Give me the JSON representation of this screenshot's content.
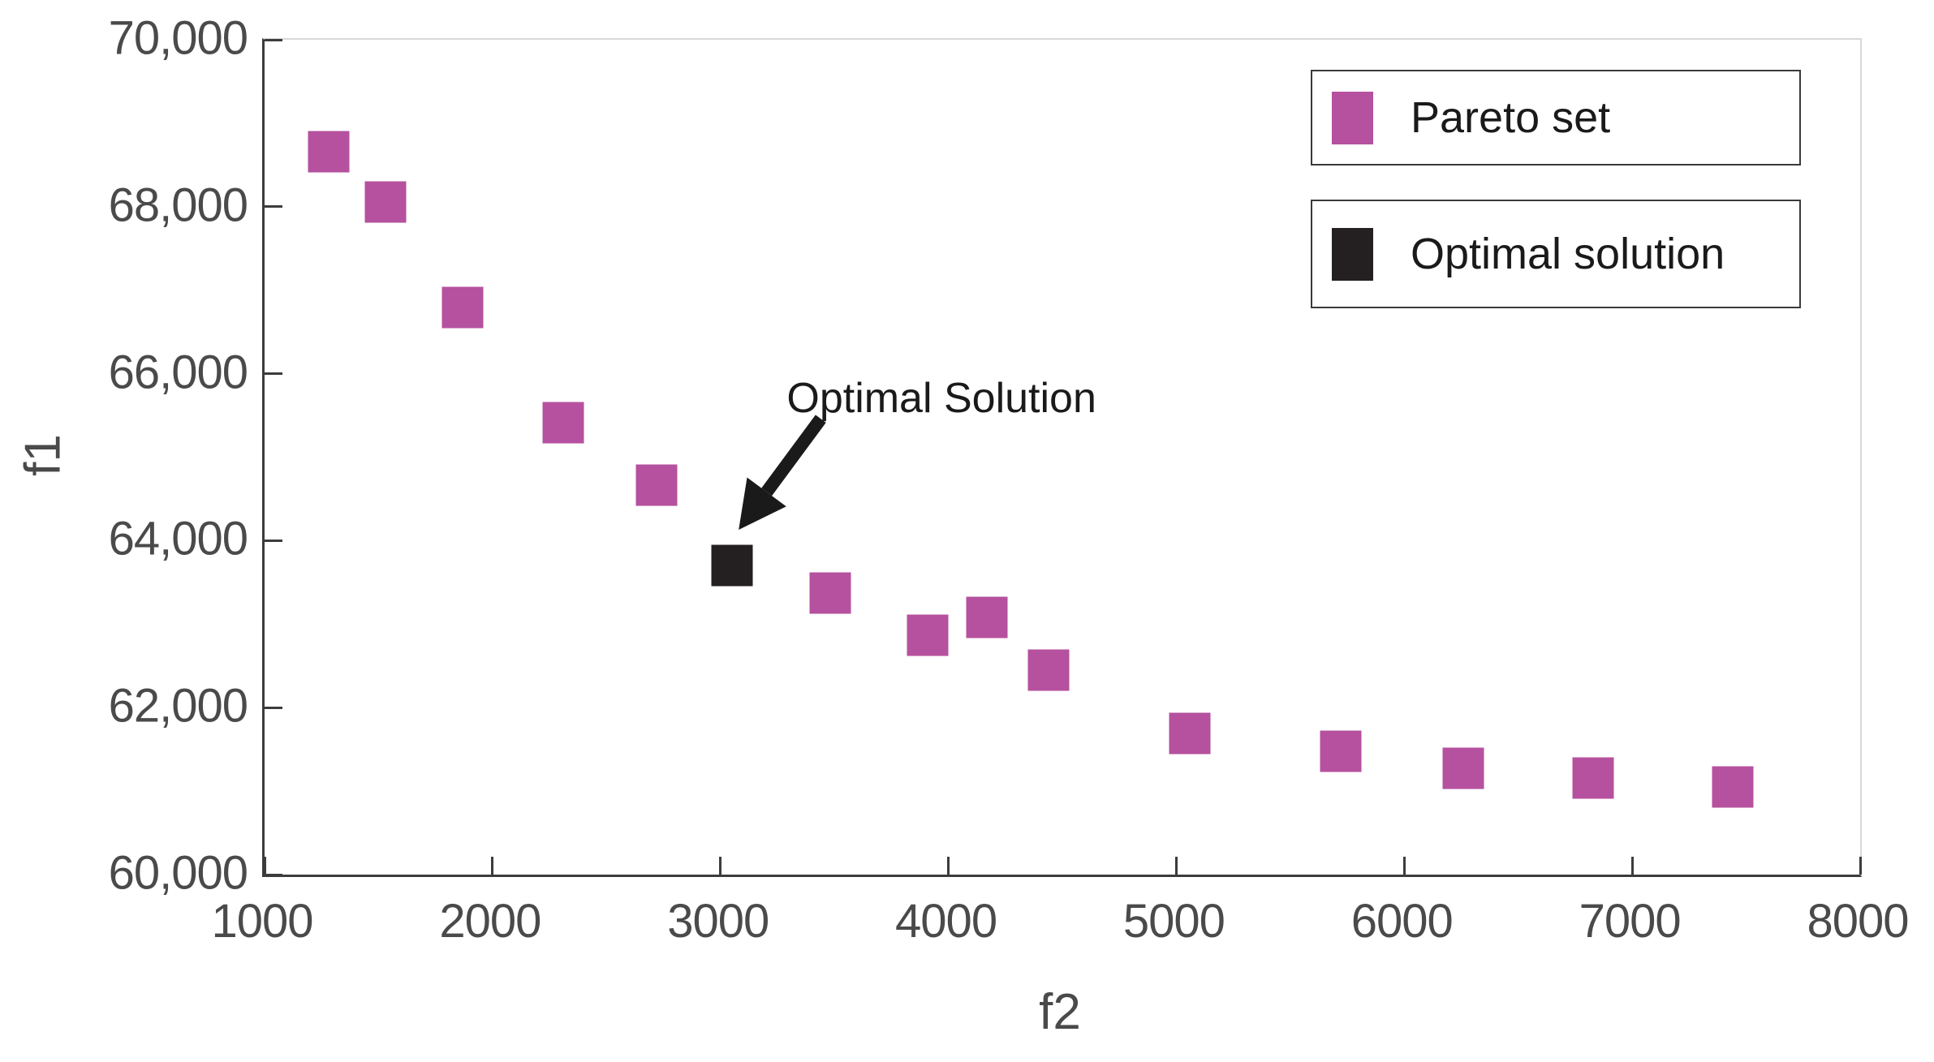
{
  "chart_data": {
    "type": "scatter",
    "title": "",
    "xlabel": "f2",
    "ylabel": "f1",
    "xlim": [
      1000,
      8000
    ],
    "ylim": [
      60000,
      70000
    ],
    "grid": false,
    "x_ticks": {
      "values": [
        1000,
        2000,
        3000,
        4000,
        5000,
        6000,
        7000,
        8000
      ],
      "labels": [
        "1000",
        "2000",
        "3000",
        "4000",
        "5000",
        "6000",
        "7000",
        "8000"
      ]
    },
    "y_ticks": {
      "values": [
        60000,
        62000,
        64000,
        66000,
        68000,
        70000
      ],
      "labels": [
        "60,000",
        "62,000",
        "64,000",
        "66,000",
        "68,000",
        "70,000"
      ]
    },
    "series": [
      {
        "name": "Pareto set",
        "marker": "square",
        "color": "#b5519e",
        "points": [
          [
            1280,
            68660
          ],
          [
            1530,
            68060
          ],
          [
            1870,
            66790
          ],
          [
            2310,
            65410
          ],
          [
            2720,
            64660
          ],
          [
            3480,
            63370
          ],
          [
            3910,
            62870
          ],
          [
            4170,
            63080
          ],
          [
            4440,
            62450
          ],
          [
            5060,
            61690
          ],
          [
            5720,
            61480
          ],
          [
            6260,
            61270
          ],
          [
            6830,
            61160
          ],
          [
            7440,
            61050
          ]
        ]
      },
      {
        "name": "Optimal solution",
        "marker": "square",
        "color": "#241f20",
        "points": [
          [
            3050,
            63700
          ]
        ]
      }
    ],
    "legend": {
      "position": "top-right",
      "entries": [
        "Pareto set",
        "Optimal solution"
      ]
    },
    "annotation": {
      "text": "Optimal Solution",
      "text_at": [
        3970,
        65700
      ],
      "arrow_from": [
        3440,
        65460
      ],
      "arrow_to": [
        3080,
        64130
      ],
      "color": "#1a1a1a"
    }
  }
}
